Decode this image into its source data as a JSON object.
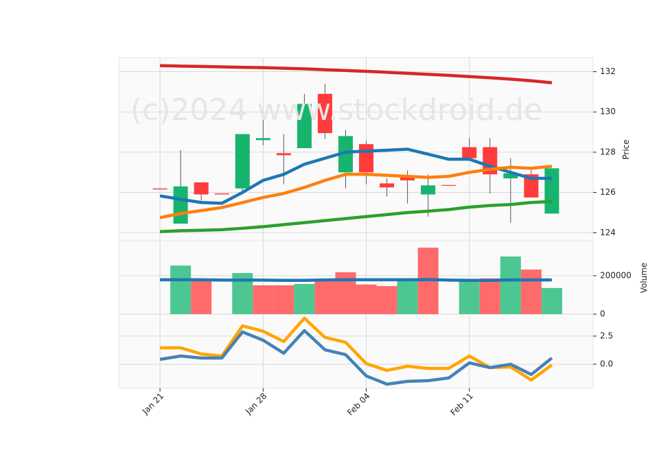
{
  "chart_data": {
    "type": "candlestick",
    "watermark": "(c)2024 www.stockdroid.de",
    "categories": [
      "Jan 21",
      null,
      null,
      null,
      null,
      "Jan 28",
      null,
      null,
      null,
      null,
      "Feb 04",
      null,
      null,
      null,
      null,
      "Feb 11",
      null,
      null,
      null,
      null
    ],
    "open": [
      126.2,
      124.45,
      126.5,
      125.95,
      126.2,
      128.6,
      127.95,
      128.2,
      130.9,
      127.0,
      128.4,
      126.45,
      126.8,
      125.9,
      126.37,
      128.25,
      128.25,
      126.7,
      126.9,
      124.95
    ],
    "high": [
      126.2,
      128.1,
      126.5,
      125.95,
      128.9,
      130.0,
      128.9,
      130.9,
      131.4,
      129.1,
      128.55,
      126.7,
      127.1,
      126.9,
      126.37,
      128.7,
      128.7,
      127.7,
      127.1,
      127.2
    ],
    "low": [
      126.15,
      124.45,
      125.6,
      125.9,
      125.9,
      128.35,
      126.4,
      128.2,
      128.65,
      126.2,
      126.4,
      125.8,
      125.45,
      124.8,
      126.33,
      127.7,
      125.95,
      124.5,
      125.75,
      124.95
    ],
    "close": [
      126.15,
      126.3,
      125.9,
      125.9,
      128.9,
      128.7,
      127.85,
      130.4,
      128.95,
      128.8,
      127.0,
      126.25,
      126.6,
      126.35,
      126.33,
      127.7,
      126.9,
      126.95,
      125.75,
      127.2
    ],
    "up_color": "#16b46d",
    "down_color": "#ff3b3b",
    "ylabel": "Price",
    "ylim": [
      123.6,
      132.7
    ],
    "yticks": [
      124,
      126,
      128,
      130,
      132
    ],
    "grid": true,
    "moving_averages": [
      {
        "color": "#d62728",
        "values": [
          132.3,
          132.28,
          132.26,
          132.24,
          132.22,
          132.2,
          132.17,
          132.14,
          132.1,
          132.06,
          132.02,
          131.97,
          131.92,
          131.87,
          131.82,
          131.76,
          131.7,
          131.63,
          131.55,
          131.45
        ]
      },
      {
        "color": "#1f77b4",
        "values": [
          125.83,
          125.66,
          125.5,
          125.46,
          126.0,
          126.6,
          126.9,
          127.4,
          127.7,
          128.0,
          128.05,
          128.1,
          128.15,
          127.9,
          127.65,
          127.65,
          127.3,
          127.0,
          126.7,
          126.7
        ]
      },
      {
        "color": "#ff7f0e",
        "values": [
          124.75,
          124.95,
          125.1,
          125.25,
          125.5,
          125.75,
          125.95,
          126.25,
          126.6,
          126.9,
          126.9,
          126.85,
          126.8,
          126.75,
          126.8,
          127.0,
          127.15,
          127.25,
          127.2,
          127.3
        ]
      },
      {
        "color": "#2ca02c",
        "values": [
          124.05,
          124.1,
          124.12,
          124.15,
          124.22,
          124.3,
          124.4,
          124.5,
          124.6,
          124.7,
          124.8,
          124.9,
          125.0,
          125.07,
          125.15,
          125.27,
          125.35,
          125.4,
          125.5,
          125.55
        ]
      }
    ],
    "volume": {
      "ylabel": "Volume",
      "ylim": [
        0,
        382000
      ],
      "yticks": [
        0,
        200000
      ],
      "values": [
        0,
        253000,
        179000,
        0,
        214000,
        150000,
        150000,
        157000,
        179000,
        218000,
        154000,
        146000,
        186000,
        346000,
        0,
        179000,
        186000,
        300000,
        232000,
        136000
      ],
      "up_color": "#4cc791",
      "down_color": "#ff6b6b",
      "ma": {
        "color": "#1f77b4",
        "values": [
          179000,
          179000,
          179000,
          177000,
          177000,
          177000,
          176000,
          176000,
          178000,
          179000,
          179000,
          179000,
          179000,
          180000,
          177000,
          176000,
          176000,
          178000,
          178000,
          178000
        ]
      }
    },
    "indicator": {
      "ylim": [
        -2.13,
        4.45
      ],
      "yticks": [
        {
          "value": 0,
          "label": "0.0"
        },
        {
          "value": 2.5,
          "label": "2.5"
        }
      ],
      "series": [
        {
          "color": "#ffa500",
          "values": [
            1.46,
            1.46,
            0.91,
            0.73,
            3.41,
            2.93,
            2.01,
            4.09,
            2.38,
            1.95,
            0.06,
            -0.55,
            -0.18,
            -0.37,
            -0.37,
            0.73,
            -0.3,
            -0.24,
            -1.4,
            -0.06
          ]
        },
        {
          "color": "#4682b4",
          "values": [
            0.43,
            0.73,
            0.55,
            0.55,
            2.87,
            2.13,
            0.98,
            2.99,
            1.28,
            0.85,
            -1.04,
            -1.77,
            -1.52,
            -1.46,
            -1.22,
            0.12,
            -0.3,
            0.0,
            -0.91,
            0.55
          ]
        }
      ]
    }
  }
}
